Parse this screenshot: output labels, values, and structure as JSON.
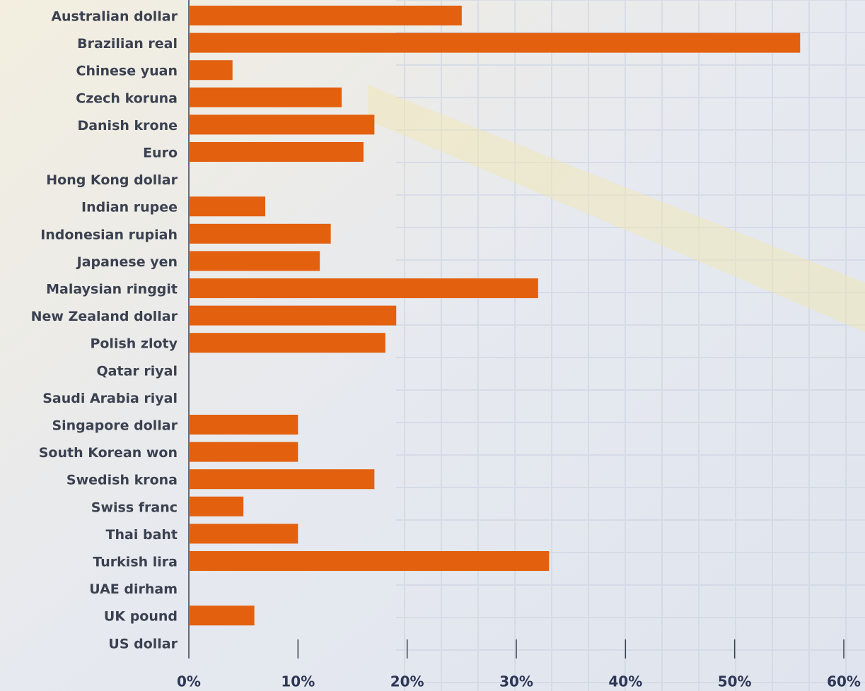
{
  "chart_data": {
    "type": "bar",
    "orientation": "horizontal",
    "categories": [
      "Australian dollar",
      "Brazilian real",
      "Chinese yuan",
      "Czech koruna",
      "Danish krone",
      "Euro",
      "Hong Kong dollar",
      "Indian rupee",
      "Indonesian rupiah",
      "Japanese yen",
      "Malaysian ringgit",
      "New Zealand dollar",
      "Polish zloty",
      "Qatar riyal",
      "Saudi Arabia riyal",
      "Singapore dollar",
      "South Korean won",
      "Swedish krona",
      "Swiss franc",
      "Thai baht",
      "Turkish lira",
      "UAE dirham",
      "UK pound",
      "US dollar"
    ],
    "values": [
      25,
      56,
      4,
      14,
      17,
      16,
      0,
      7,
      13,
      12,
      32,
      19,
      18,
      0,
      0,
      10,
      10,
      17,
      5,
      10,
      33,
      0,
      6,
      0
    ],
    "color": "#e3600f",
    "xlim": [
      0,
      60
    ],
    "xticks": [
      {
        "value": 0,
        "label": "0%"
      },
      {
        "value": 10,
        "label": "10%"
      },
      {
        "value": 20,
        "label": "20%"
      },
      {
        "value": 30,
        "label": "30%"
      },
      {
        "value": 40,
        "label": "40%"
      },
      {
        "value": 50,
        "label": "50%"
      },
      {
        "value": 60,
        "label": "60%"
      }
    ]
  }
}
